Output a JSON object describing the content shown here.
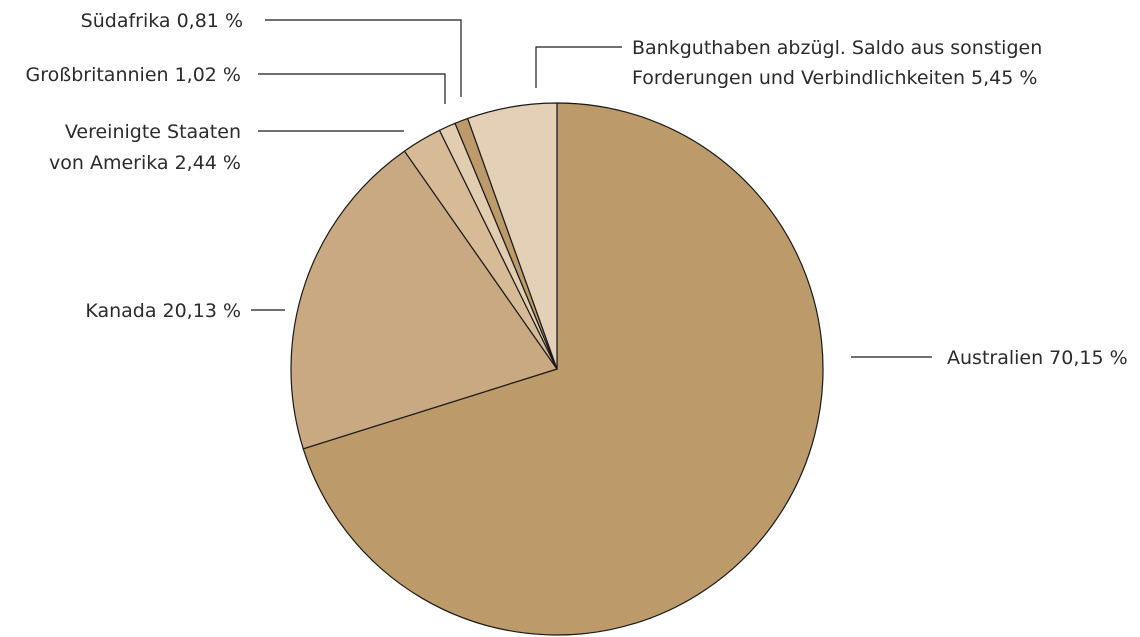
{
  "chart_data": {
    "type": "pie",
    "start": "12 o'clock",
    "direction": "clockwise",
    "slices": [
      {
        "label": "Australien",
        "value": 70.15,
        "label_lines": [
          "Australien 70,15 %"
        ],
        "color": "#bc9a69"
      },
      {
        "label": "Kanada",
        "value": 20.13,
        "label_lines": [
          "Kanada 20,13 %"
        ],
        "color": "#c8a982"
      },
      {
        "label": "Vereinigte Staaten von Amerika",
        "value": 2.44,
        "label_lines": [
          "Vereinigte Staaten",
          "von Amerika 2,44 %"
        ],
        "color": "#d6bb96"
      },
      {
        "label": "Großbritannien",
        "value": 1.02,
        "label_lines": [
          "Großbritannien 1,02 %"
        ],
        "color": "#e2cdb0"
      },
      {
        "label": "Südafrika",
        "value": 0.81,
        "label_lines": [
          "Südafrika 0,81 %"
        ],
        "color": "#bc9a69"
      },
      {
        "label": "Bankguthaben abzügl. Saldo aus sonstigen Forderungen und Verbindlichkeiten",
        "value": 5.45,
        "label_lines": [
          "Bankguthaben abzügl. Saldo aus sonstigen",
          "Forderungen und Verbindlichkeiten 5,45 %"
        ],
        "color": "#e3d0b7"
      }
    ]
  }
}
